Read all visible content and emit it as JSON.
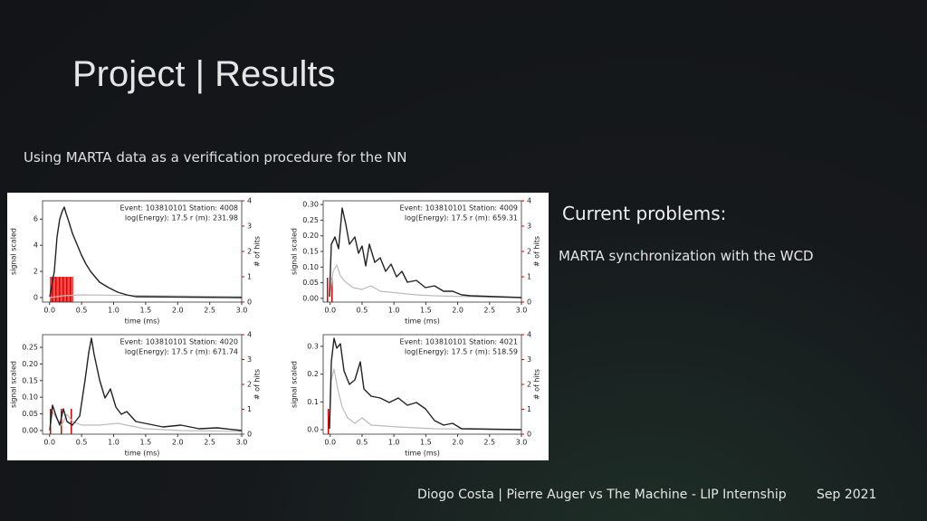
{
  "header": {
    "title": "Project | Results"
  },
  "subtitle": "Using MARTA data as a verification procedure for the NN",
  "side": {
    "heading": "Current problems:",
    "text": "MARTA synchronization with the WCD"
  },
  "footer": {
    "text": "Diogo Costa | Pierre Auger vs The Machine - LIP Internship",
    "date": "Sep 2021"
  },
  "figure": {
    "xlabel": "time (ms)",
    "ylabel": "signal scaled",
    "y2label": "# of hits",
    "xlim": [
      -0.11,
      3.0
    ],
    "xticks": [
      "0.0",
      "0.5",
      "1.0",
      "1.5",
      "2.0",
      "2.5",
      "3.0"
    ],
    "y2lim": [
      0,
      4
    ],
    "y2ticks": [
      "0",
      "1",
      "2",
      "3",
      "4"
    ],
    "panels": [
      {
        "event": "Event: 103810101   Station: 4008",
        "info": "log(Energy): 17.5   r (m): 231.98",
        "ylim": [
          -0.35,
          7.4
        ],
        "yticks": [
          "0",
          "2",
          "4",
          "6"
        ]
      },
      {
        "event": "Event: 103810101   Station: 4009",
        "info": "log(Energy): 17.5   r (m): 659.31",
        "ylim": [
          -0.012,
          0.312
        ],
        "yticks": [
          "0.00",
          "0.05",
          "0.10",
          "0.15",
          "0.20",
          "0.25",
          "0.30"
        ]
      },
      {
        "event": "Event: 103810101   Station: 4020",
        "info": "log(Energy): 17.5   r (m): 671.74",
        "ylim": [
          -0.011,
          0.288
        ],
        "yticks": [
          "0.00",
          "0.05",
          "0.10",
          "0.15",
          "0.20",
          "0.25"
        ]
      },
      {
        "event": "Event: 103810101   Station: 4021",
        "info": "log(Energy): 17.5   r (m): 518.59",
        "ylim": [
          -0.016,
          0.342
        ],
        "yticks": [
          "0.0",
          "0.1",
          "0.2",
          "0.3"
        ]
      }
    ]
  }
}
